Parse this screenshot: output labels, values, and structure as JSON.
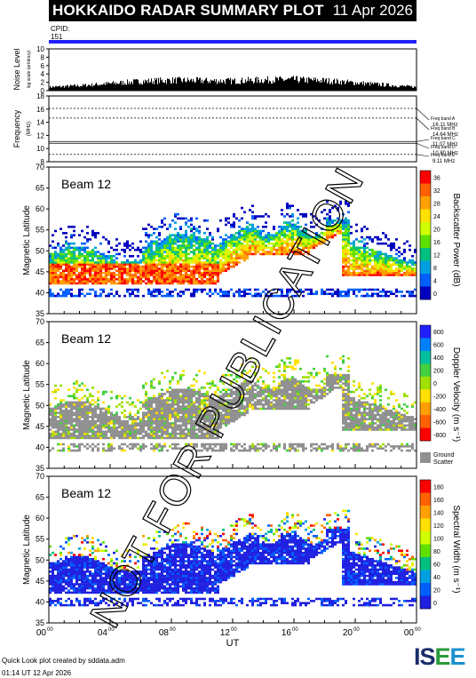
{
  "header": {
    "title": "HOKKAIDO RADAR SUMMARY PLOT",
    "date": "11 Apr 2026"
  },
  "cpid": {
    "label": "CPID:",
    "value": "151"
  },
  "noise_panel": {
    "ylabel": "Noise Level",
    "ylabel_sub": "log scale (arbitrary)",
    "ticks": [
      "10",
      "8",
      "6",
      "4",
      "2",
      "0"
    ]
  },
  "freq_panel": {
    "ylabel": "Frequency",
    "ylabel_unit": "(MHz)",
    "ticks": [
      "18",
      "16",
      "14",
      "12",
      "10",
      "8"
    ],
    "bands": [
      {
        "name": "Freq band A",
        "value": "16.11 MHz"
      },
      {
        "name": "Freq band B",
        "value": "14.64 MHz"
      },
      {
        "name": "Freq band C",
        "value": "11.07 MHz"
      },
      {
        "name": "Freq band D",
        "value": "10.80 MHz"
      },
      {
        "name": "Freq band E",
        "value": "9.11 MHz"
      }
    ]
  },
  "panels": [
    {
      "beam": "Beam 12",
      "ylabel": "Magnetic Latitude",
      "colorbar_label": "Backscatter Power (dB)",
      "colorbar_ticks": [
        "36",
        "32",
        "28",
        "24",
        "20",
        "16",
        "12",
        "8",
        "4",
        "0"
      ],
      "colors": [
        "#ff0000",
        "#ff6000",
        "#ffa000",
        "#ffe000",
        "#d0ff00",
        "#60e000",
        "#00c080",
        "#00a0e0",
        "#0060ff",
        "#0000c0"
      ]
    },
    {
      "beam": "Beam 12",
      "ylabel": "Magnetic Latitude",
      "colorbar_label": "Doppler Velocity (m s⁻¹)",
      "colorbar_ticks": [
        "800",
        "600",
        "400",
        "200",
        "0",
        "-200",
        "-400",
        "-600",
        "-800"
      ],
      "colors": [
        "#2020ff",
        "#0080ff",
        "#00c0a0",
        "#40d040",
        "#a0e000",
        "#ffe000",
        "#ffa000",
        "#ff6000",
        "#ff0000"
      ],
      "ground_scatter_label": "Ground Scatter"
    },
    {
      "beam": "Beam 12",
      "ylabel": "Magnetic Latitude",
      "colorbar_label": "Spectral Width (m s⁻¹)",
      "colorbar_ticks": [
        "180",
        "160",
        "140",
        "120",
        "100",
        "80",
        "60",
        "40",
        "20",
        "0"
      ],
      "colors": [
        "#ff0000",
        "#ff6000",
        "#ffa000",
        "#ffe000",
        "#d0ff00",
        "#60e000",
        "#00c080",
        "#00a0e0",
        "#0060ff",
        "#2020e0"
      ]
    }
  ],
  "lat_ticks": [
    "70",
    "65",
    "60",
    "55",
    "50",
    "45",
    "40",
    "35"
  ],
  "xaxis": {
    "label": "UT",
    "ticks": [
      "00",
      "04",
      "08",
      "12",
      "16",
      "20",
      "00"
    ],
    "tick_sup": "00"
  },
  "watermark": "NOT FOR PUBLICATION",
  "footer": {
    "line1": "Quick Look plot created by sddata.adm",
    "line2": "01:14 UT 12 Apr 2026"
  },
  "logo": {
    "text": "ISEE"
  },
  "chart_data": [
    {
      "type": "area",
      "title": "Noise Level",
      "xlabel": "UT",
      "ylabel": "Noise Level",
      "ylim": [
        0,
        10
      ],
      "x_hours": [
        0,
        2,
        4,
        6,
        8,
        10,
        12,
        14,
        16,
        18,
        20,
        22,
        24
      ],
      "values": [
        1.0,
        1.4,
        2.0,
        2.6,
        2.9,
        2.8,
        2.7,
        3.0,
        3.1,
        2.8,
        2.2,
        1.6,
        1.0
      ]
    },
    {
      "type": "line",
      "title": "Frequency",
      "xlabel": "UT",
      "ylabel": "Frequency (MHz)",
      "ylim": [
        8,
        18
      ],
      "series": [
        {
          "name": "Freq band A",
          "values": [
            16.11
          ]
        },
        {
          "name": "Freq band B",
          "values": [
            14.64
          ]
        },
        {
          "name": "Freq band C",
          "values": [
            11.07
          ]
        },
        {
          "name": "Freq band D",
          "values": [
            10.8
          ]
        },
        {
          "name": "Freq band E",
          "values": [
            9.11
          ]
        }
      ]
    },
    {
      "type": "heatmap",
      "title": "Backscatter Power (dB)",
      "xlabel": "UT",
      "ylabel": "Magnetic Latitude",
      "xlim": [
        0,
        24
      ],
      "ylim": [
        35,
        70
      ],
      "zlim": [
        0,
        36
      ]
    },
    {
      "type": "heatmap",
      "title": "Doppler Velocity (m s⁻¹)",
      "xlabel": "UT",
      "ylabel": "Magnetic Latitude",
      "xlim": [
        0,
        24
      ],
      "ylim": [
        35,
        70
      ],
      "zlim": [
        -800,
        800
      ]
    },
    {
      "type": "heatmap",
      "title": "Spectral Width (m s⁻¹)",
      "xlabel": "UT",
      "ylabel": "Magnetic Latitude",
      "xlim": [
        0,
        24
      ],
      "ylim": [
        35,
        70
      ],
      "zlim": [
        0,
        180
      ]
    }
  ]
}
